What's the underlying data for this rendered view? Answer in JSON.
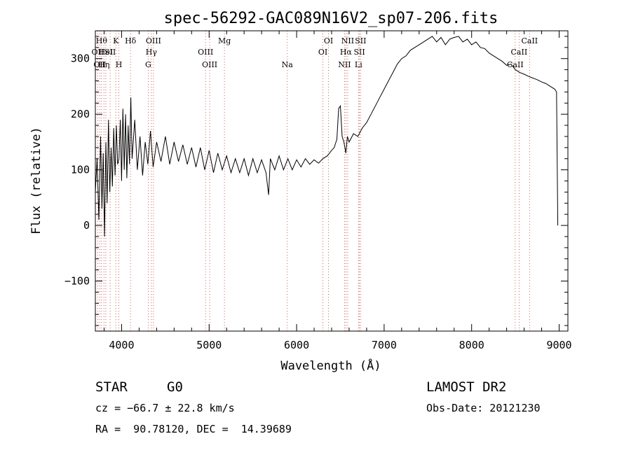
{
  "chart_data": {
    "type": "line",
    "title": "spec-56292-GAC089N16V2_sp07-206.fits",
    "xlabel": "Wavelength (Å)",
    "ylabel": "Flux (relative)",
    "xlim": [
      3700,
      9100
    ],
    "ylim": [
      -190,
      350
    ],
    "xticks": [
      4000,
      5000,
      6000,
      7000,
      8000,
      9000
    ],
    "yticks": [
      -100,
      0,
      100,
      200,
      300
    ],
    "grid": false,
    "series": [
      {
        "values": [
          [
            3700,
            60
          ],
          [
            3720,
            120
          ],
          [
            3740,
            10
          ],
          [
            3760,
            160
          ],
          [
            3775,
            30
          ],
          [
            3790,
            130
          ],
          [
            3805,
            -20
          ],
          [
            3820,
            150
          ],
          [
            3835,
            40
          ],
          [
            3850,
            190
          ],
          [
            3865,
            60
          ],
          [
            3880,
            140
          ],
          [
            3895,
            70
          ],
          [
            3910,
            175
          ],
          [
            3925,
            90
          ],
          [
            3940,
            180
          ],
          [
            3955,
            110
          ],
          [
            3970,
            120
          ],
          [
            3985,
            190
          ],
          [
            4000,
            80
          ],
          [
            4015,
            210
          ],
          [
            4030,
            100
          ],
          [
            4045,
            200
          ],
          [
            4060,
            85
          ],
          [
            4075,
            180
          ],
          [
            4090,
            110
          ],
          [
            4105,
            230
          ],
          [
            4120,
            120
          ],
          [
            4150,
            190
          ],
          [
            4180,
            100
          ],
          [
            4210,
            160
          ],
          [
            4240,
            90
          ],
          [
            4270,
            150
          ],
          [
            4300,
            110
          ],
          [
            4330,
            170
          ],
          [
            4360,
            105
          ],
          [
            4400,
            150
          ],
          [
            4450,
            115
          ],
          [
            4500,
            160
          ],
          [
            4550,
            110
          ],
          [
            4600,
            150
          ],
          [
            4650,
            115
          ],
          [
            4700,
            145
          ],
          [
            4750,
            110
          ],
          [
            4800,
            140
          ],
          [
            4850,
            105
          ],
          [
            4900,
            140
          ],
          [
            4950,
            100
          ],
          [
            5000,
            135
          ],
          [
            5050,
            95
          ],
          [
            5100,
            130
          ],
          [
            5150,
            100
          ],
          [
            5200,
            125
          ],
          [
            5250,
            95
          ],
          [
            5300,
            120
          ],
          [
            5350,
            95
          ],
          [
            5400,
            120
          ],
          [
            5450,
            90
          ],
          [
            5500,
            120
          ],
          [
            5550,
            95
          ],
          [
            5600,
            118
          ],
          [
            5650,
            95
          ],
          [
            5680,
            55
          ],
          [
            5700,
            120
          ],
          [
            5750,
            100
          ],
          [
            5800,
            125
          ],
          [
            5850,
            100
          ],
          [
            5900,
            120
          ],
          [
            5950,
            100
          ],
          [
            6000,
            118
          ],
          [
            6050,
            105
          ],
          [
            6100,
            120
          ],
          [
            6150,
            110
          ],
          [
            6200,
            118
          ],
          [
            6250,
            112
          ],
          [
            6300,
            120
          ],
          [
            6350,
            125
          ],
          [
            6400,
            135
          ],
          [
            6430,
            140
          ],
          [
            6460,
            155
          ],
          [
            6480,
            210
          ],
          [
            6500,
            215
          ],
          [
            6520,
            160
          ],
          [
            6540,
            150
          ],
          [
            6563,
            130
          ],
          [
            6580,
            160
          ],
          [
            6600,
            150
          ],
          [
            6650,
            165
          ],
          [
            6700,
            160
          ],
          [
            6750,
            175
          ],
          [
            6800,
            185
          ],
          [
            6850,
            200
          ],
          [
            6900,
            215
          ],
          [
            6950,
            230
          ],
          [
            7000,
            245
          ],
          [
            7050,
            260
          ],
          [
            7100,
            275
          ],
          [
            7150,
            290
          ],
          [
            7200,
            300
          ],
          [
            7250,
            305
          ],
          [
            7300,
            315
          ],
          [
            7350,
            320
          ],
          [
            7400,
            325
          ],
          [
            7450,
            330
          ],
          [
            7500,
            335
          ],
          [
            7550,
            340
          ],
          [
            7600,
            330
          ],
          [
            7650,
            338
          ],
          [
            7700,
            325
          ],
          [
            7750,
            335
          ],
          [
            7800,
            338
          ],
          [
            7850,
            340
          ],
          [
            7900,
            330
          ],
          [
            7950,
            335
          ],
          [
            8000,
            325
          ],
          [
            8050,
            330
          ],
          [
            8100,
            320
          ],
          [
            8150,
            318
          ],
          [
            8200,
            310
          ],
          [
            8250,
            305
          ],
          [
            8300,
            300
          ],
          [
            8350,
            295
          ],
          [
            8400,
            288
          ],
          [
            8450,
            290
          ],
          [
            8500,
            280
          ],
          [
            8550,
            275
          ],
          [
            8600,
            272
          ],
          [
            8650,
            268
          ],
          [
            8700,
            265
          ],
          [
            8750,
            262
          ],
          [
            8800,
            258
          ],
          [
            8850,
            255
          ],
          [
            8900,
            250
          ],
          [
            8950,
            245
          ],
          [
            8970,
            240
          ],
          [
            8985,
            0
          ]
        ]
      }
    ],
    "line_markers": [
      {
        "x": 3727,
        "label": "OII",
        "row": 1
      },
      {
        "x": 3750,
        "label": "OII",
        "row": 2
      },
      {
        "x": 3771,
        "label": "Hθ",
        "row": 0
      },
      {
        "x": 3798,
        "label": "Hη",
        "row": 2
      },
      {
        "x": 3820,
        "label": "HeI",
        "row": 1
      },
      {
        "x": 3869,
        "label": "SII",
        "row": 1
      },
      {
        "x": 3934,
        "label": "K",
        "row": 0
      },
      {
        "x": 3969,
        "label": "H",
        "row": 2
      },
      {
        "x": 4102,
        "label": "Hδ",
        "row": 0
      },
      {
        "x": 4340,
        "label": "Hγ",
        "row": 1
      },
      {
        "x": 4364,
        "label": "OIII",
        "row": 0
      },
      {
        "x": 4304,
        "label": "G",
        "row": 2
      },
      {
        "x": 4959,
        "label": "OIII",
        "row": 1
      },
      {
        "x": 5007,
        "label": "OIII",
        "row": 2
      },
      {
        "x": 5175,
        "label": "Mg",
        "row": 0
      },
      {
        "x": 5893,
        "label": "Na",
        "row": 2
      },
      {
        "x": 6300,
        "label": "OI",
        "row": 1
      },
      {
        "x": 6364,
        "label": "OI",
        "row": 0
      },
      {
        "x": 6548,
        "label": "NII",
        "row": 2
      },
      {
        "x": 6563,
        "label": "Hα",
        "row": 1
      },
      {
        "x": 6584,
        "label": "NII",
        "row": 0
      },
      {
        "x": 6707,
        "label": "Li",
        "row": 2
      },
      {
        "x": 6717,
        "label": "SII",
        "row": 1
      },
      {
        "x": 6731,
        "label": "SII",
        "row": 0
      },
      {
        "x": 8498,
        "label": "CaII",
        "row": 2
      },
      {
        "x": 8542,
        "label": "CaII",
        "row": 1
      },
      {
        "x": 8662,
        "label": "CaII",
        "row": 0
      }
    ]
  },
  "info": {
    "class_label": "STAR",
    "subclass_label": "G0",
    "survey": "LAMOST DR2",
    "cz": "cz = −66.7 ± 22.8 km/s",
    "obs_date": "Obs-Date: 20121230",
    "coords": "RA =  90.78120, DEC =  14.39689"
  }
}
